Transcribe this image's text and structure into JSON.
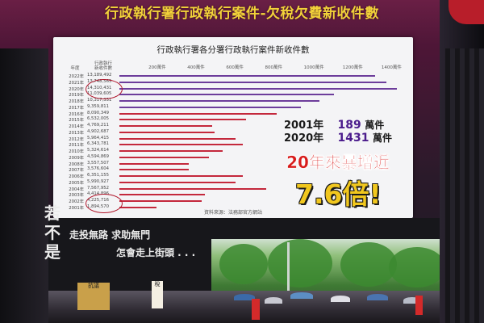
{
  "poster": {
    "top_title": "行政執行署行政執行案件-欠稅欠費新收件數",
    "chart_title": "行政執行署各分署行政執行案件新收件數",
    "col_year": "年度",
    "col_count": "行政執行\n新收件數",
    "source": "資料來源：法務部官方網站",
    "comparison": [
      {
        "year": "2001年",
        "count": "189",
        "unit": "萬件"
      },
      {
        "year": "2020年",
        "count": "1431",
        "unit": "萬件"
      }
    ],
    "headline": "20年來暴增近",
    "multiplier": "7.6倍!"
  },
  "chart_data": {
    "type": "bar",
    "orientation": "horizontal",
    "title": "行政執行署各分署行政執行案件新收件數",
    "x_tick_labels": [
      "200萬件",
      "400萬件",
      "600萬件",
      "800萬件",
      "1000萬件",
      "1200萬件",
      "1400萬件"
    ],
    "xlim": [
      0,
      1500
    ],
    "x_unit": "萬件",
    "categories": [
      "2022年",
      "2021年",
      "2020年",
      "2019年",
      "2018年",
      "2017年",
      "2016年",
      "2015年",
      "2014年",
      "2013年",
      "2012年",
      "2011年",
      "2010年",
      "2009年",
      "2008年",
      "2007年",
      "2006年",
      "2005年",
      "2004年",
      "2003年",
      "2002年",
      "2001年"
    ],
    "count_labels": [
      "13,189,492",
      "13,748,565",
      "14,310,431",
      "11,039,605",
      "10,317,331",
      "9,359,811",
      "8,090,349",
      "6,532,005",
      "4,769,211",
      "4,902,687",
      "5,964,415",
      "6,343,781",
      "5,324,614",
      "4,594,869",
      "3,557,507",
      "3,576,604",
      "6,351,155",
      "5,990,927",
      "7,567,952",
      "4,414,896",
      "4,225,716",
      "1,894,570"
    ],
    "values": [
      1318.9,
      1374.9,
      1431.0,
      1104.0,
      1031.7,
      936.0,
      809.0,
      653.2,
      476.9,
      490.3,
      596.4,
      634.4,
      532.5,
      459.5,
      355.8,
      357.7,
      635.1,
      599.1,
      756.8,
      441.5,
      422.6,
      189.5
    ],
    "bar_colors": {
      "recent": "#6d3d9b",
      "earlier": "#c4283c"
    },
    "circled_years": [
      "2021年",
      "2020年",
      "2019年",
      "2002年",
      "2001年"
    ]
  },
  "lower_panel": {
    "vertical_text": [
      "若",
      "不",
      "是"
    ],
    "slogan_line1": "走投無路 求助無門",
    "slogan_line2": "怎會走上街頭 . . .",
    "signs": [
      "抗議",
      "稅"
    ]
  }
}
